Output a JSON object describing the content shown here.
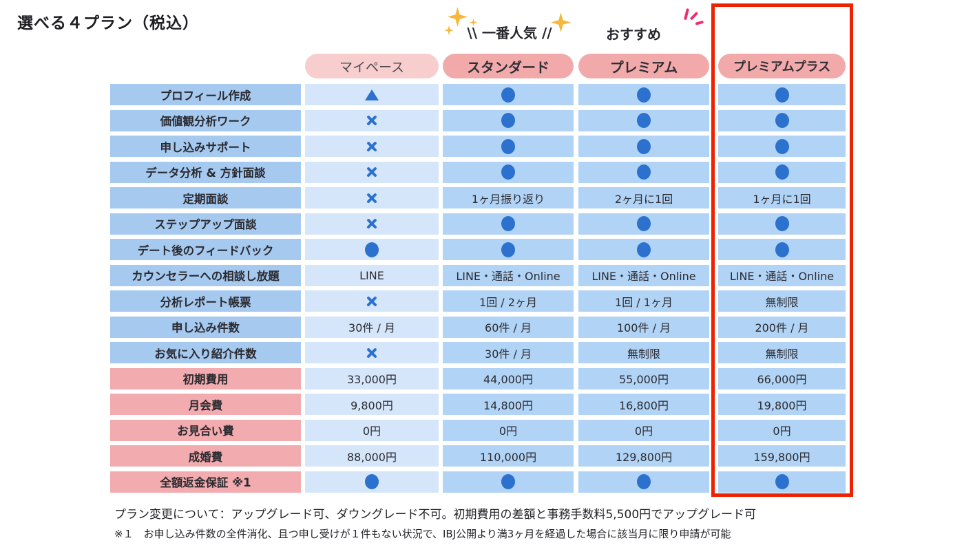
{
  "title": "選べる４プラン（税込）",
  "badges": {
    "most_popular": "\\\\ 一番人気 //",
    "recommended": "おすすめ"
  },
  "footnotes": [
    "プラン変更について：アップグレード可、ダウングレード不可。初期費用の差額と事務手数料5,500円でアップグレード可",
    "※１　お申し込み件数の全件消化、且つ申し受けが１件もない状況で、IBJ公開より満3ヶ月を経過した場合に該当月に限り申請が可能"
  ],
  "legend_glyphs": {
    "included": "●",
    "not_included": "✕",
    "partial": "▲"
  },
  "colors": {
    "feature_label_bg": "#a6c9ef",
    "price_label_bg": "#f2abae",
    "mypace_cell_bg": "#d6e6fa",
    "plan_cell_bg": "#b1d3f5",
    "pill_light_bg": "#f8cdce",
    "pill_strong_bg": "#f2a9a9",
    "glyph_blue": "#2b71cd",
    "highlight_red": "#ee2200",
    "sparkle_gold": "#f6b83c",
    "accent_pink": "#ee2d73"
  },
  "chart_data": {
    "type": "table",
    "title": "選べる４プラン（税込）",
    "columns": [
      "マイペース",
      "スタンダード",
      "プレミアム",
      "プレミアムプラス"
    ],
    "column_badges": [
      "",
      "一番人気",
      "おすすめ",
      ""
    ],
    "highlighted_column": "プレミアムプラス",
    "rows": [
      {
        "label": "プロフィール作成",
        "section": "feature",
        "values": [
          "▲",
          "●",
          "●",
          "●"
        ]
      },
      {
        "label": "価値観分析ワーク",
        "section": "feature",
        "values": [
          "✕",
          "●",
          "●",
          "●"
        ]
      },
      {
        "label": "申し込みサポート",
        "section": "feature",
        "values": [
          "✕",
          "●",
          "●",
          "●"
        ]
      },
      {
        "label": "データ分析 & 方針面談",
        "section": "feature",
        "values": [
          "✕",
          "●",
          "●",
          "●"
        ]
      },
      {
        "label": "定期面談",
        "section": "feature",
        "values": [
          "✕",
          "1ヶ月振り返り",
          "2ヶ月に1回",
          "1ヶ月に1回"
        ]
      },
      {
        "label": "ステップアップ面談",
        "section": "feature",
        "values": [
          "✕",
          "●",
          "●",
          "●"
        ]
      },
      {
        "label": "デート後のフィードバック",
        "section": "feature",
        "values": [
          "●",
          "●",
          "●",
          "●"
        ]
      },
      {
        "label": "カウンセラーへの相談し放題",
        "section": "feature",
        "values": [
          "LINE",
          "LINE・通話・Online",
          "LINE・通話・Online",
          "LINE・通話・Online"
        ]
      },
      {
        "label": "分析レポート帳票",
        "section": "feature",
        "values": [
          "✕",
          "1回 / 2ヶ月",
          "1回 / 1ヶ月",
          "無制限"
        ]
      },
      {
        "label": "申し込み件数",
        "section": "feature",
        "values": [
          "30件 / 月",
          "60件 / 月",
          "100件 / 月",
          "200件 / 月"
        ]
      },
      {
        "label": "お気に入り紹介件数",
        "section": "feature",
        "values": [
          "✕",
          "30件 / 月",
          "無制限",
          "無制限"
        ]
      },
      {
        "label": "初期費用",
        "section": "price",
        "values": [
          "33,000円",
          "44,000円",
          "55,000円",
          "66,000円"
        ]
      },
      {
        "label": "月会費",
        "section": "price",
        "values": [
          "9,800円",
          "14,800円",
          "16,800円",
          "19,800円"
        ]
      },
      {
        "label": "お見合い費",
        "section": "price",
        "values": [
          "0円",
          "0円",
          "0円",
          "0円"
        ]
      },
      {
        "label": "成婚費",
        "section": "price",
        "values": [
          "88,000円",
          "110,000円",
          "129,800円",
          "159,800円"
        ]
      },
      {
        "label": "全額返金保証 ※1",
        "section": "price",
        "values": [
          "●",
          "●",
          "●",
          "●"
        ]
      }
    ]
  }
}
